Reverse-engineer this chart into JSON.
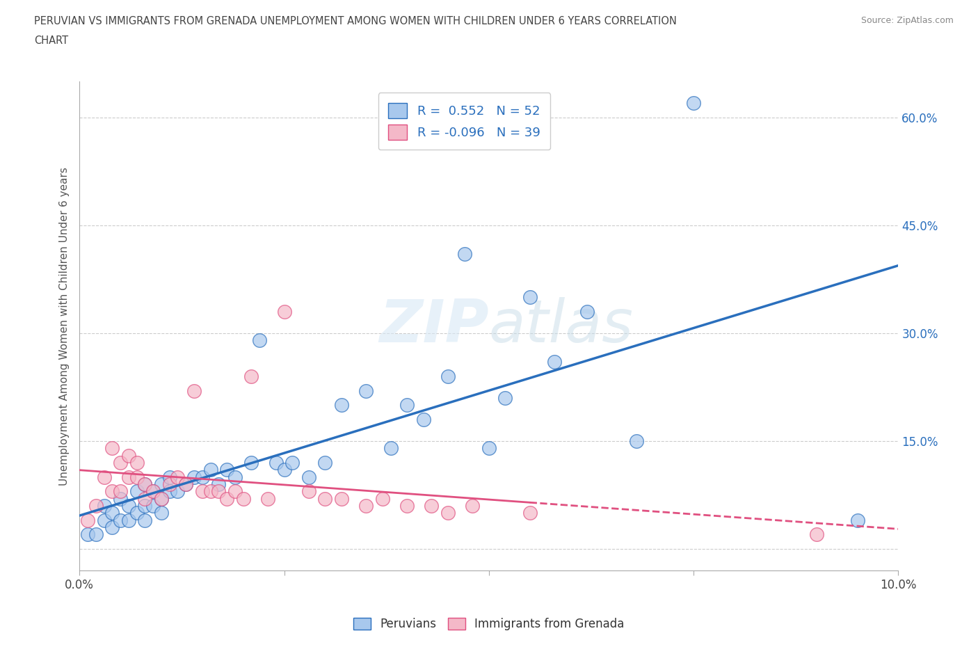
{
  "title_line1": "PERUVIAN VS IMMIGRANTS FROM GRENADA UNEMPLOYMENT AMONG WOMEN WITH CHILDREN UNDER 6 YEARS CORRELATION",
  "title_line2": "CHART",
  "source": "Source: ZipAtlas.com",
  "ylabel": "Unemployment Among Women with Children Under 6 years",
  "x_min": 0.0,
  "x_max": 0.1,
  "y_min": -0.03,
  "y_max": 0.65,
  "peruvian_color": "#a8c8ed",
  "grenada_color": "#f4b8c8",
  "peruvian_R": 0.552,
  "peruvian_N": 52,
  "grenada_R": -0.096,
  "grenada_N": 39,
  "peruvian_scatter_x": [
    0.001,
    0.002,
    0.003,
    0.003,
    0.004,
    0.004,
    0.005,
    0.005,
    0.006,
    0.006,
    0.007,
    0.007,
    0.008,
    0.008,
    0.008,
    0.009,
    0.009,
    0.01,
    0.01,
    0.01,
    0.011,
    0.011,
    0.012,
    0.013,
    0.014,
    0.015,
    0.016,
    0.017,
    0.018,
    0.019,
    0.021,
    0.022,
    0.024,
    0.025,
    0.026,
    0.028,
    0.03,
    0.032,
    0.035,
    0.038,
    0.04,
    0.042,
    0.045,
    0.047,
    0.05,
    0.052,
    0.055,
    0.058,
    0.062,
    0.068,
    0.075,
    0.095
  ],
  "peruvian_scatter_y": [
    0.02,
    0.02,
    0.04,
    0.06,
    0.03,
    0.05,
    0.04,
    0.07,
    0.04,
    0.06,
    0.05,
    0.08,
    0.06,
    0.04,
    0.09,
    0.06,
    0.08,
    0.07,
    0.05,
    0.09,
    0.08,
    0.1,
    0.08,
    0.09,
    0.1,
    0.1,
    0.11,
    0.09,
    0.11,
    0.1,
    0.12,
    0.29,
    0.12,
    0.11,
    0.12,
    0.1,
    0.12,
    0.2,
    0.22,
    0.14,
    0.2,
    0.18,
    0.24,
    0.41,
    0.14,
    0.21,
    0.35,
    0.26,
    0.33,
    0.15,
    0.62,
    0.04
  ],
  "grenada_scatter_x": [
    0.001,
    0.002,
    0.003,
    0.004,
    0.004,
    0.005,
    0.005,
    0.006,
    0.006,
    0.007,
    0.007,
    0.008,
    0.008,
    0.009,
    0.01,
    0.011,
    0.012,
    0.013,
    0.014,
    0.015,
    0.016,
    0.017,
    0.018,
    0.019,
    0.02,
    0.021,
    0.023,
    0.025,
    0.028,
    0.03,
    0.032,
    0.035,
    0.037,
    0.04,
    0.043,
    0.045,
    0.048,
    0.055,
    0.09
  ],
  "grenada_scatter_y": [
    0.04,
    0.06,
    0.1,
    0.08,
    0.14,
    0.08,
    0.12,
    0.1,
    0.13,
    0.1,
    0.12,
    0.07,
    0.09,
    0.08,
    0.07,
    0.09,
    0.1,
    0.09,
    0.22,
    0.08,
    0.08,
    0.08,
    0.07,
    0.08,
    0.07,
    0.24,
    0.07,
    0.33,
    0.08,
    0.07,
    0.07,
    0.06,
    0.07,
    0.06,
    0.06,
    0.05,
    0.06,
    0.05,
    0.02
  ],
  "peruvian_line_color": "#2a6fbd",
  "grenada_line_color": "#e05080",
  "background_color": "#ffffff",
  "grid_color": "#cccccc"
}
